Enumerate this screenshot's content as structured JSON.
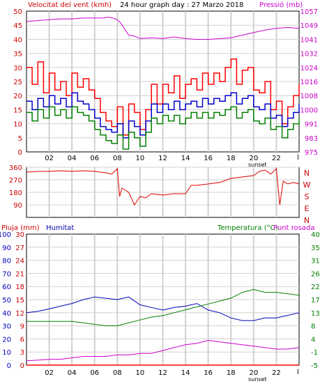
{
  "chart_data": [
    {
      "type": "line",
      "title": "24 hour graph day : 27 Marzo 2018",
      "left_label": "Velocitat del vent (kmh)",
      "right_label": "Pressió (mb)",
      "y_left_ticks": [
        "0",
        "5",
        "10",
        "15",
        "20",
        "25",
        "30",
        "35",
        "40",
        "45",
        "50"
      ],
      "y_right_ticks": [
        "975",
        "983",
        "991",
        "1000",
        "1008",
        "1016",
        "1024",
        "1032",
        "1041",
        "1049",
        "1057"
      ],
      "x_ticks": [
        "02",
        "04",
        "06",
        "08",
        "10",
        "12",
        "14",
        "16",
        "18",
        "20",
        "22"
      ],
      "x_extra_labels": [
        "sunset",
        "l"
      ],
      "xlim": [
        0,
        24
      ],
      "ylim_left": [
        0,
        50
      ],
      "ylim_right": [
        975,
        1057
      ],
      "colors": {
        "gust": "#ff0000",
        "wind": "#0000cc",
        "avg": "#008000",
        "pressure": "#cc00cc"
      },
      "series": [
        {
          "key": "pressure",
          "axis": "right",
          "x": [
            0,
            1,
            2,
            3,
            4,
            5,
            6,
            6.8,
            7.2,
            7.6,
            8,
            8.3,
            8.6,
            9,
            9.5,
            10,
            11,
            12,
            13,
            14,
            15,
            16,
            17,
            18,
            19,
            20,
            21,
            22,
            23,
            24
          ],
          "y": [
            1051,
            1051.5,
            1052,
            1052.5,
            1052.5,
            1053,
            1053,
            1053,
            1053.5,
            1053,
            1052,
            1050,
            1047,
            1043,
            1042.5,
            1041,
            1041.5,
            1041,
            1042,
            1041,
            1040.5,
            1040.5,
            1041,
            1041.5,
            1043,
            1044.5,
            1046,
            1047,
            1047.5,
            1047
          ]
        },
        {
          "key": "gust",
          "axis": "left",
          "x": [
            0,
            0.5,
            1,
            1.5,
            2,
            2.5,
            3,
            3.5,
            4,
            4.5,
            5,
            5.5,
            6,
            6.5,
            7,
            7.5,
            8,
            8.5,
            9,
            9.5,
            10,
            10.5,
            11,
            11.5,
            12,
            12.5,
            13,
            13.5,
            14,
            14.5,
            15,
            15.5,
            16,
            16.5,
            17,
            17.5,
            18,
            18.5,
            19,
            19.5,
            20,
            20.5,
            21,
            21.5,
            22,
            22.5,
            23,
            23.5,
            24
          ],
          "y": [
            30,
            24,
            32,
            21,
            28,
            22,
            25,
            20,
            28,
            23,
            26,
            22,
            19,
            14,
            11,
            9,
            16,
            6,
            17,
            14,
            8,
            15,
            24,
            17,
            24,
            21,
            27,
            19,
            24,
            26,
            22,
            28,
            24,
            28,
            25,
            30,
            33,
            24,
            29,
            30,
            22,
            21,
            25,
            15,
            18,
            10,
            16,
            20,
            24
          ]
        },
        {
          "key": "wind",
          "axis": "left",
          "x": [
            0,
            0.5,
            1,
            1.5,
            2,
            2.5,
            3,
            3.5,
            4,
            4.5,
            5,
            5.5,
            6,
            6.5,
            7,
            7.5,
            8,
            8.5,
            9,
            9.5,
            10,
            10.5,
            11,
            11.5,
            12,
            12.5,
            13,
            13.5,
            14,
            14.5,
            15,
            15.5,
            16,
            16.5,
            17,
            17.5,
            18,
            18.5,
            19,
            19.5,
            20,
            20.5,
            21,
            21.5,
            22,
            22.5,
            23,
            23.5,
            24
          ],
          "y": [
            18,
            15,
            19,
            16,
            20,
            17,
            19,
            16,
            21,
            18,
            17,
            15,
            12,
            9,
            8,
            7,
            10,
            5,
            11,
            9,
            6,
            11,
            17,
            14,
            17,
            15,
            18,
            15,
            17,
            18,
            16,
            19,
            17,
            19,
            18,
            20,
            21,
            17,
            19,
            20,
            16,
            15,
            17,
            12,
            13,
            9,
            12,
            14,
            17
          ]
        },
        {
          "key": "avg",
          "axis": "left",
          "x": [
            0,
            0.5,
            1,
            1.5,
            2,
            2.5,
            3,
            3.5,
            4,
            4.5,
            5,
            5.5,
            6,
            6.5,
            7,
            7.5,
            8,
            8.5,
            9,
            9.5,
            10,
            10.5,
            11,
            11.5,
            12,
            12.5,
            13,
            13.5,
            14,
            14.5,
            15,
            15.5,
            16,
            16.5,
            17,
            17.5,
            18,
            18.5,
            19,
            19.5,
            20,
            20.5,
            21,
            21.5,
            22,
            22.5,
            23,
            23.5,
            24
          ],
          "y": [
            14,
            11,
            15,
            12,
            16,
            13,
            15,
            12,
            16,
            14,
            13,
            11,
            8,
            6,
            4,
            3,
            6,
            1,
            7,
            5,
            2,
            7,
            12,
            10,
            13,
            11,
            13,
            10,
            12,
            14,
            12,
            14,
            12,
            14,
            13,
            15,
            16,
            12,
            14,
            15,
            11,
            10,
            12,
            8,
            9,
            5,
            8,
            10,
            12
          ]
        }
      ]
    },
    {
      "type": "scatter",
      "y_ticks": [
        "360",
        "270",
        "180",
        "90"
      ],
      "y_right_labels": [
        "N",
        "W",
        "S",
        "E",
        "N"
      ],
      "ylim": [
        0,
        360
      ],
      "xlim": [
        0,
        24
      ],
      "series": [
        {
          "key": "direction",
          "x": [
            0,
            1,
            2,
            3,
            4,
            5,
            6,
            7,
            7.5,
            8,
            8.2,
            8.4,
            9,
            9.5,
            10,
            10.5,
            11,
            12,
            13,
            14,
            14.5,
            15,
            16,
            17,
            18,
            19,
            20,
            20.5,
            21,
            21.5,
            22,
            22.3,
            22.6,
            23,
            23.5,
            24
          ],
          "y": [
            325,
            330,
            330,
            335,
            330,
            335,
            330,
            320,
            310,
            350,
            150,
            210,
            180,
            90,
            150,
            140,
            170,
            160,
            170,
            170,
            230,
            230,
            240,
            250,
            280,
            290,
            300,
            330,
            340,
            310,
            350,
            90,
            260,
            240,
            250,
            240
          ]
        }
      ]
    },
    {
      "type": "line",
      "left_label_1": "Pluja (mm)",
      "left_label_2": "Humitat",
      "right_label_1": "Temperatura (°C)",
      "right_label_2": "Punt rosada",
      "y_rain_ticks": [
        "0",
        "3",
        "6",
        "9",
        "12",
        "15",
        "18",
        "21",
        "24",
        "27",
        "30"
      ],
      "y_hum_ticks": [
        "0",
        "10",
        "20",
        "30",
        "40",
        "50",
        "60",
        "70",
        "80",
        "90",
        "100"
      ],
      "y_temp_ticks": [
        "-5",
        "-1",
        "4",
        "8",
        "13",
        "17",
        "22",
        "26",
        "31",
        "35",
        "40"
      ],
      "x_ticks": [
        "02",
        "04",
        "06",
        "08",
        "10",
        "12",
        "14",
        "16",
        "18",
        "20",
        "22"
      ],
      "x_extra_labels": [
        "sunset",
        "l"
      ],
      "xlim": [
        0,
        24
      ],
      "ylim_humidity": [
        0,
        100
      ],
      "ylim_temperature": [
        -5,
        40
      ],
      "colors": {
        "humidity": "#0000bb",
        "temperature": "#008000",
        "dewpoint": "#cc00cc",
        "rain": "#ff0000"
      },
      "series": [
        {
          "key": "humidity",
          "axis": "humidity",
          "x": [
            0,
            1,
            2,
            3,
            4,
            5,
            6,
            7,
            8,
            9,
            10,
            11,
            12,
            13,
            14,
            15,
            16,
            17,
            18,
            19,
            20,
            21,
            22,
            23,
            24
          ],
          "y": [
            40,
            41,
            43,
            45,
            47,
            50,
            52,
            51,
            50,
            52,
            46,
            44,
            42,
            44,
            45,
            47,
            42,
            40,
            36,
            34,
            34,
            36,
            36,
            38,
            40
          ]
        },
        {
          "key": "temperature",
          "axis": "temperature",
          "x": [
            0,
            1,
            2,
            3,
            4,
            5,
            6,
            7,
            8,
            9,
            10,
            11,
            12,
            13,
            14,
            15,
            16,
            17,
            18,
            19,
            20,
            21,
            22,
            23,
            24
          ],
          "y": [
            10,
            10,
            10,
            10,
            10,
            9.5,
            9,
            8.5,
            8.5,
            9.5,
            10.5,
            11.5,
            12,
            13,
            14,
            15,
            16,
            17,
            18,
            20,
            21,
            20,
            20,
            19.5,
            19
          ]
        },
        {
          "key": "dewpoint",
          "axis": "temperature",
          "x": [
            0,
            1,
            2,
            3,
            4,
            5,
            6,
            7,
            8,
            9,
            10,
            11,
            12,
            13,
            14,
            15,
            16,
            17,
            18,
            19,
            20,
            21,
            22,
            23,
            24
          ],
          "y": [
            -3.5,
            -3.3,
            -3,
            -3,
            -2.5,
            -2,
            -2,
            -2,
            -1.5,
            -1.5,
            -1,
            -1,
            0,
            1,
            2,
            2.5,
            3.5,
            3,
            2.5,
            2,
            1.5,
            1,
            0.5,
            0.5,
            1
          ]
        },
        {
          "key": "rain",
          "axis": "humidity",
          "x": [
            0,
            24
          ],
          "y": [
            0,
            0
          ]
        }
      ]
    }
  ]
}
